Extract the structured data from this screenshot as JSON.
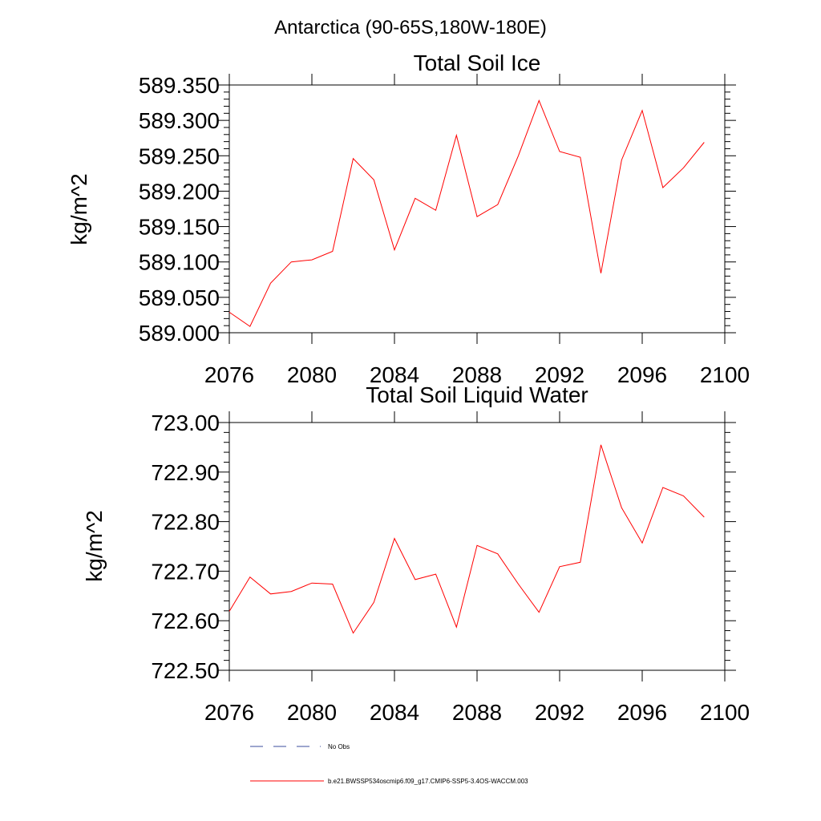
{
  "figure": {
    "title": "Antarctica (90-65S,180W-180E)"
  },
  "legend": {
    "entries": [
      {
        "label": "No Obs",
        "color": "#3b4c9e",
        "style": "dashed"
      },
      {
        "label": "b.e21.BWSSP534oscmip6.f09_g17.CMIP6-SSP5-3.4OS-WACCM.003",
        "color": "#ff0000",
        "style": "solid"
      }
    ]
  },
  "chart_data": [
    {
      "type": "line",
      "title": "Total Soil Ice",
      "xlabel": "",
      "ylabel": "kg/m^2",
      "xlim": [
        2076,
        2100
      ],
      "ylim": [
        589.0,
        589.35
      ],
      "xticks": [
        2076,
        2080,
        2084,
        2088,
        2092,
        2096,
        2100
      ],
      "xticklabels": [
        "2076",
        "2080",
        "2084",
        "2088",
        "2092",
        "2096",
        "2100"
      ],
      "yticks": [
        589.0,
        589.05,
        589.1,
        589.15,
        589.2,
        589.25,
        589.3,
        589.35
      ],
      "yticklabels": [
        "589.000",
        "589.050",
        "589.100",
        "589.150",
        "589.200",
        "589.250",
        "589.300",
        "589.350"
      ],
      "grid": false,
      "series": [
        {
          "color": "#ff0000",
          "x": [
            2076,
            2077,
            2078,
            2079,
            2080,
            2081,
            2082,
            2083,
            2084,
            2085,
            2086,
            2087,
            2088,
            2089,
            2090,
            2091,
            2092,
            2093,
            2094,
            2095,
            2096,
            2097,
            2098,
            2099
          ],
          "y": [
            589.029,
            589.009,
            589.07,
            589.1,
            589.103,
            589.115,
            589.246,
            589.216,
            589.117,
            589.19,
            589.173,
            589.279,
            589.164,
            589.181,
            589.25,
            589.328,
            589.256,
            589.248,
            589.084,
            589.244,
            589.314,
            589.205,
            589.233,
            589.269
          ]
        }
      ]
    },
    {
      "type": "line",
      "title": "Total Soil Liquid Water",
      "xlabel": "",
      "ylabel": "kg/m^2",
      "xlim": [
        2076,
        2100
      ],
      "ylim": [
        722.5,
        723.0
      ],
      "xticks": [
        2076,
        2080,
        2084,
        2088,
        2092,
        2096,
        2100
      ],
      "xticklabels": [
        "2076",
        "2080",
        "2084",
        "2088",
        "2092",
        "2096",
        "2100"
      ],
      "yticks": [
        722.5,
        722.6,
        722.7,
        722.8,
        722.9,
        723.0
      ],
      "yticklabels": [
        "722.50",
        "722.60",
        "722.70",
        "722.80",
        "722.90",
        "723.00"
      ],
      "grid": false,
      "series": [
        {
          "color": "#ff0000",
          "x": [
            2076,
            2077,
            2078,
            2079,
            2080,
            2081,
            2082,
            2083,
            2084,
            2085,
            2086,
            2087,
            2088,
            2089,
            2090,
            2091,
            2092,
            2093,
            2094,
            2095,
            2096,
            2097,
            2098,
            2099
          ],
          "y": [
            722.619,
            722.688,
            722.654,
            722.659,
            722.676,
            722.674,
            722.575,
            722.637,
            722.766,
            722.683,
            722.694,
            722.587,
            722.752,
            722.735,
            722.674,
            722.617,
            722.709,
            722.718,
            722.955,
            722.828,
            722.757,
            722.869,
            722.852,
            722.809
          ]
        }
      ]
    }
  ]
}
